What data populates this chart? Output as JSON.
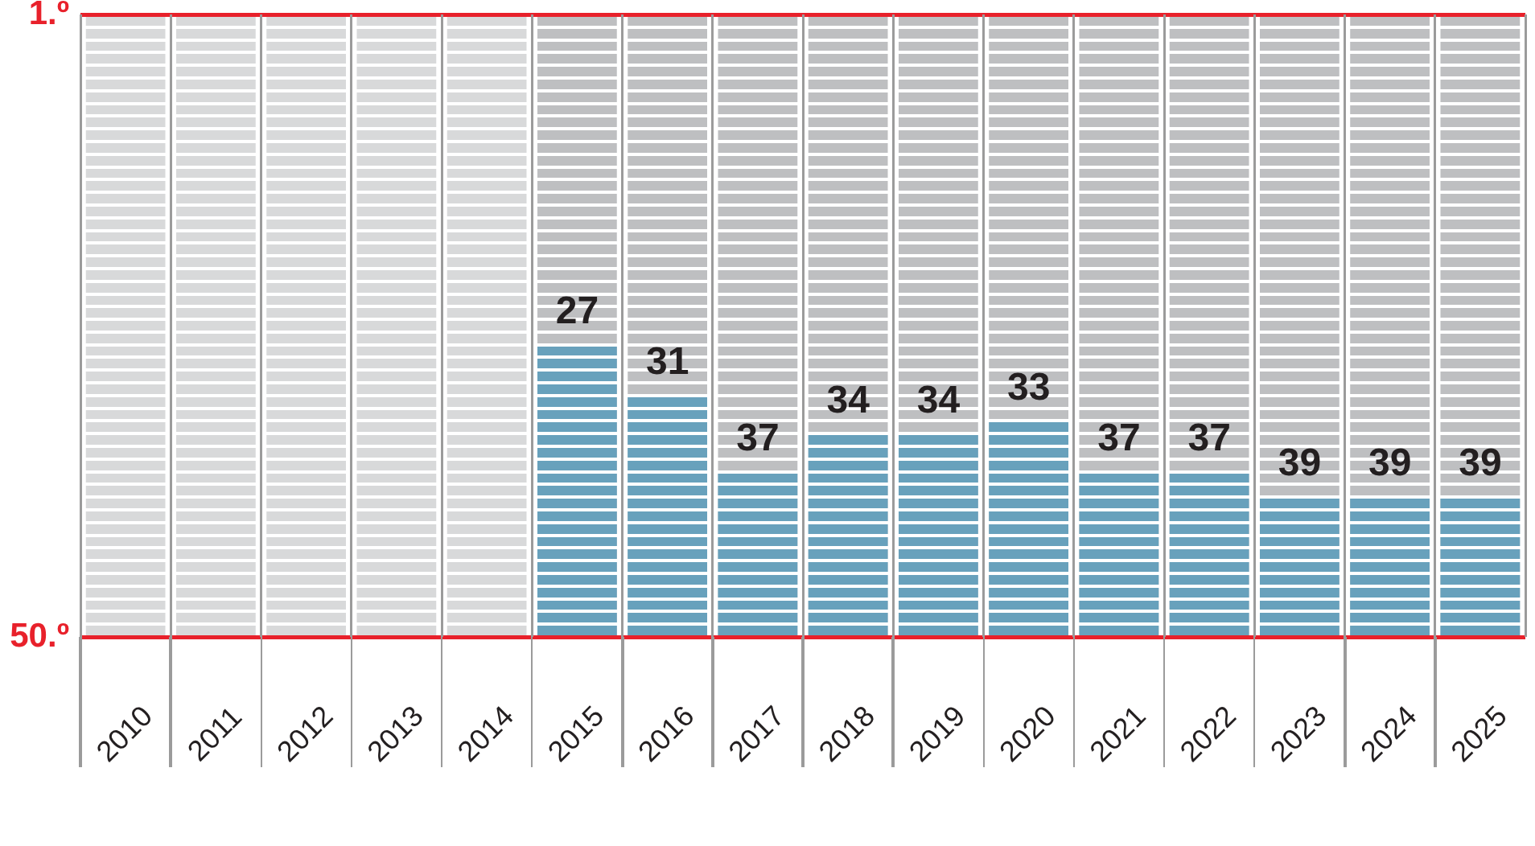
{
  "chart_data": {
    "type": "bar",
    "categories": [
      "2010",
      "2011",
      "2012",
      "2013",
      "2014",
      "2015",
      "2016",
      "2017",
      "2018",
      "2019",
      "2020",
      "2021",
      "2022",
      "2023",
      "2024",
      "2025"
    ],
    "base": [
      null,
      null,
      null,
      null,
      null,
      50,
      50,
      50,
      50,
      50,
      50,
      50,
      50,
      50,
      50,
      50
    ],
    "values": [
      null,
      null,
      null,
      null,
      null,
      -23,
      -19,
      -13,
      -16,
      -16,
      -17,
      -13,
      -13,
      -11,
      -11,
      -11
    ],
    "value_labels": [
      null,
      null,
      null,
      null,
      null,
      "27",
      "31",
      "37",
      "34",
      "34",
      "33",
      "37",
      "37",
      "39",
      "39",
      "39"
    ],
    "color": "#68a1bc",
    "ylim": [
      50,
      1
    ],
    "yticks": [
      {
        "value": 1,
        "label": "1.º"
      },
      {
        "value": 2,
        "label": null
      },
      {
        "value": 3,
        "label": null
      },
      {
        "value": 4,
        "label": null
      },
      {
        "value": 5,
        "label": null
      },
      {
        "value": 6,
        "label": null
      },
      {
        "value": 7,
        "label": null
      },
      {
        "value": 8,
        "label": null
      },
      {
        "value": 9,
        "label": null
      },
      {
        "value": 10,
        "label": null
      },
      {
        "value": 11,
        "label": null
      },
      {
        "value": 12,
        "label": null
      },
      {
        "value": 13,
        "label": null
      },
      {
        "value": 14,
        "label": null
      },
      {
        "value": 15,
        "label": null
      },
      {
        "value": 16,
        "label": null
      },
      {
        "value": 17,
        "label": null
      },
      {
        "value": 18,
        "label": null
      },
      {
        "value": 19,
        "label": null
      },
      {
        "value": 20,
        "label": null
      },
      {
        "value": 21,
        "label": null
      },
      {
        "value": 22,
        "label": null
      },
      {
        "value": 23,
        "label": null
      },
      {
        "value": 24,
        "label": null
      },
      {
        "value": 25,
        "label": null
      },
      {
        "value": 26,
        "label": null
      },
      {
        "value": 27,
        "label": null
      },
      {
        "value": 28,
        "label": null
      },
      {
        "value": 29,
        "label": null
      },
      {
        "value": 30,
        "label": null
      },
      {
        "value": 31,
        "label": null
      },
      {
        "value": 32,
        "label": null
      },
      {
        "value": 33,
        "label": null
      },
      {
        "value": 34,
        "label": null
      },
      {
        "value": 35,
        "label": null
      },
      {
        "value": 36,
        "label": null
      },
      {
        "value": 37,
        "label": null
      },
      {
        "value": 38,
        "label": null
      },
      {
        "value": 39,
        "label": null
      },
      {
        "value": 40,
        "label": null
      },
      {
        "value": 41,
        "label": null
      },
      {
        "value": 42,
        "label": null
      },
      {
        "value": 43,
        "label": null
      },
      {
        "value": 44,
        "label": null
      },
      {
        "value": 45,
        "label": null
      },
      {
        "value": 46,
        "label": null
      },
      {
        "value": 47,
        "label": null
      },
      {
        "value": 48,
        "label": null
      },
      {
        "value": 49,
        "label": null
      },
      {
        "value": 50,
        "label": "50.º"
      }
    ],
    "grid": true,
    "bands": [
      {
        "axis": "x",
        "from": "2010",
        "to": "2014",
        "color": "#d8d9da"
      },
      {
        "axis": "x",
        "from": "2015",
        "to": "2025",
        "color": "#bebfc1"
      }
    ]
  }
}
